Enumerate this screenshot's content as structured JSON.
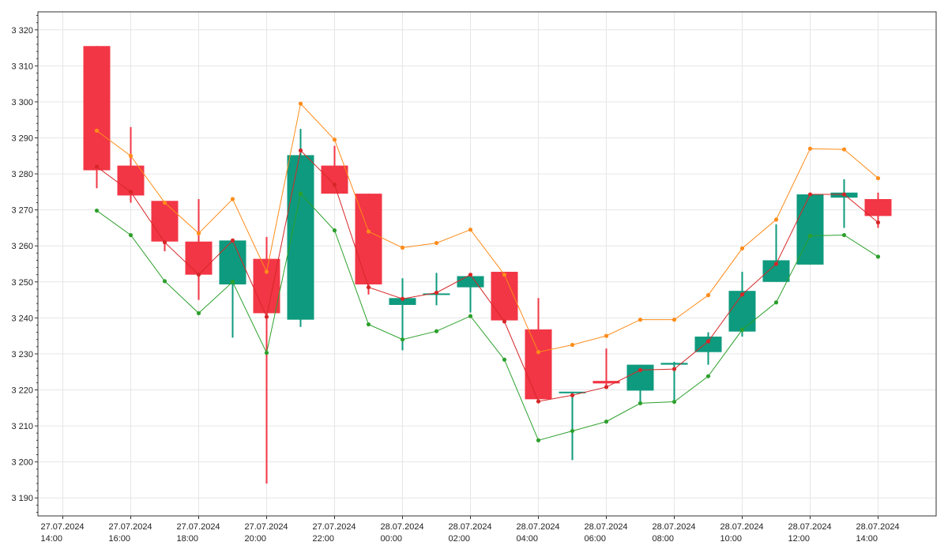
{
  "chart_data": {
    "type": "candlestick",
    "title": "",
    "xlabel": "",
    "ylabel": "",
    "ylim": [
      3185,
      3325
    ],
    "grid": true,
    "legend": "none",
    "x_ticks": [
      {
        "date": "27.07.2024",
        "time": "14:00",
        "hours": 0
      },
      {
        "date": "27.07.2024",
        "time": "16:00",
        "hours": 2
      },
      {
        "date": "27.07.2024",
        "time": "18:00",
        "hours": 4
      },
      {
        "date": "27.07.2024",
        "time": "20:00",
        "hours": 6
      },
      {
        "date": "27.07.2024",
        "time": "22:00",
        "hours": 8
      },
      {
        "date": "28.07.2024",
        "time": "00:00",
        "hours": 10
      },
      {
        "date": "28.07.2024",
        "time": "02:00",
        "hours": 12
      },
      {
        "date": "28.07.2024",
        "time": "04:00",
        "hours": 14
      },
      {
        "date": "28.07.2024",
        "time": "06:00",
        "hours": 16
      },
      {
        "date": "28.07.2024",
        "time": "08:00",
        "hours": 18
      },
      {
        "date": "28.07.2024",
        "time": "10:00",
        "hours": 20
      },
      {
        "date": "28.07.2024",
        "time": "12:00",
        "hours": 22
      },
      {
        "date": "28.07.2024",
        "time": "14:00",
        "hours": 24
      }
    ],
    "y_ticks": [
      "3 190",
      "3 200",
      "3 210",
      "3 220",
      "3 230",
      "3 240",
      "3 250",
      "3 260",
      "3 270",
      "3 280",
      "3 290",
      "3 300",
      "3 310",
      "3 320"
    ],
    "y_tick_values": [
      3190,
      3200,
      3210,
      3220,
      3230,
      3240,
      3250,
      3260,
      3270,
      3280,
      3290,
      3300,
      3310,
      3320
    ],
    "colors": {
      "up": "#0e9a7e",
      "down": "#f23645",
      "upper_band": "#ff8c1a",
      "middle_line": "#d62728",
      "lower_band": "#2ca02c",
      "grid": "#e6e6e6",
      "axis": "#333333"
    },
    "candles": [
      {
        "t": "27.07.2024 15:00",
        "open": 3315.5,
        "high": 3315.5,
        "low": 3276.0,
        "close": 3281.0
      },
      {
        "t": "27.07.2024 16:00",
        "open": 3282.3,
        "high": 3293.0,
        "low": 3272.0,
        "close": 3274.0
      },
      {
        "t": "27.07.2024 17:00",
        "open": 3272.5,
        "high": 3272.5,
        "low": 3258.5,
        "close": 3261.2
      },
      {
        "t": "27.07.2024 18:00",
        "open": 3261.2,
        "high": 3273.0,
        "low": 3245.0,
        "close": 3252.0
      },
      {
        "t": "27.07.2024 19:00",
        "open": 3249.3,
        "high": 3261.5,
        "low": 3234.5,
        "close": 3261.5
      },
      {
        "t": "27.07.2024 20:00",
        "open": 3256.4,
        "high": 3262.5,
        "low": 3194.0,
        "close": 3241.3
      },
      {
        "t": "27.07.2024 21:00",
        "open": 3239.5,
        "high": 3292.5,
        "low": 3237.5,
        "close": 3285.2
      },
      {
        "t": "27.07.2024 22:00",
        "open": 3282.3,
        "high": 3287.8,
        "low": 3274.5,
        "close": 3274.5
      },
      {
        "t": "27.07.2024 23:00",
        "open": 3274.5,
        "high": 3274.5,
        "low": 3246.5,
        "close": 3249.3
      },
      {
        "t": "28.07.2024 00:00",
        "open": 3243.6,
        "high": 3251.0,
        "low": 3231.0,
        "close": 3245.5
      },
      {
        "t": "28.07.2024 01:00",
        "open": 3246.8,
        "high": 3252.5,
        "low": 3243.5,
        "close": 3246.8
      },
      {
        "t": "28.07.2024 02:00",
        "open": 3248.5,
        "high": 3252.3,
        "low": 3241.5,
        "close": 3251.6
      },
      {
        "t": "28.07.2024 03:00",
        "open": 3252.8,
        "high": 3252.8,
        "low": 3239.3,
        "close": 3239.3
      },
      {
        "t": "28.07.2024 04:00",
        "open": 3236.8,
        "high": 3245.5,
        "low": 3217.4,
        "close": 3217.4
      },
      {
        "t": "28.07.2024 05:00",
        "open": 3219.5,
        "high": 3219.5,
        "low": 3200.5,
        "close": 3219.5
      },
      {
        "t": "28.07.2024 06:00",
        "open": 3222.5,
        "high": 3231.5,
        "low": 3220.5,
        "close": 3221.8
      },
      {
        "t": "28.07.2024 07:00",
        "open": 3219.8,
        "high": 3227.0,
        "low": 3216.0,
        "close": 3227.0
      },
      {
        "t": "28.07.2024 08:00",
        "open": 3227.0,
        "high": 3227.8,
        "low": 3216.5,
        "close": 3227.5
      },
      {
        "t": "28.07.2024 09:00",
        "open": 3230.5,
        "high": 3236.0,
        "low": 3227.0,
        "close": 3234.8
      },
      {
        "t": "28.07.2024 10:00",
        "open": 3236.2,
        "high": 3252.8,
        "low": 3234.8,
        "close": 3247.5
      },
      {
        "t": "28.07.2024 11:00",
        "open": 3250.0,
        "high": 3266.0,
        "low": 3250.0,
        "close": 3256.0
      },
      {
        "t": "28.07.2024 12:00",
        "open": 3254.8,
        "high": 3274.3,
        "low": 3254.8,
        "close": 3274.3
      },
      {
        "t": "28.07.2024 13:00",
        "open": 3273.4,
        "high": 3278.5,
        "low": 3265.0,
        "close": 3274.8
      },
      {
        "t": "28.07.2024 14:00",
        "open": 3273.0,
        "high": 3274.8,
        "low": 3265.0,
        "close": 3268.3
      }
    ],
    "series": [
      {
        "values": [
          3292.0,
          3285.0,
          3272.0,
          3263.5,
          3273.0,
          3252.8,
          3299.5,
          3289.5,
          3264.0,
          3259.5,
          3260.8,
          3264.5,
          3252.0,
          3230.5,
          3232.5,
          3235.0,
          3239.5,
          3239.5,
          3246.3,
          3259.3,
          3267.3,
          3287.0,
          3286.8,
          3278.8
        ]
      },
      {
        "values": [
          3282.0,
          3275.0,
          3261.0,
          3252.0,
          3261.5,
          3240.3,
          3286.5,
          3277.0,
          3248.5,
          3245.3,
          3247.0,
          3252.0,
          3239.0,
          3216.8,
          3218.5,
          3220.8,
          3225.5,
          3225.8,
          3233.5,
          3246.5,
          3255.0,
          3274.3,
          3274.3,
          3266.5
        ]
      },
      {
        "values": [
          3269.8,
          3263.0,
          3250.2,
          3241.3,
          3250.0,
          3230.3,
          3274.5,
          3264.3,
          3238.2,
          3234.0,
          3236.3,
          3240.5,
          3228.4,
          3206.0,
          3208.6,
          3211.2,
          3216.3,
          3216.7,
          3223.8,
          3236.7,
          3244.3,
          3262.8,
          3263.0,
          3257.0
        ]
      }
    ]
  }
}
